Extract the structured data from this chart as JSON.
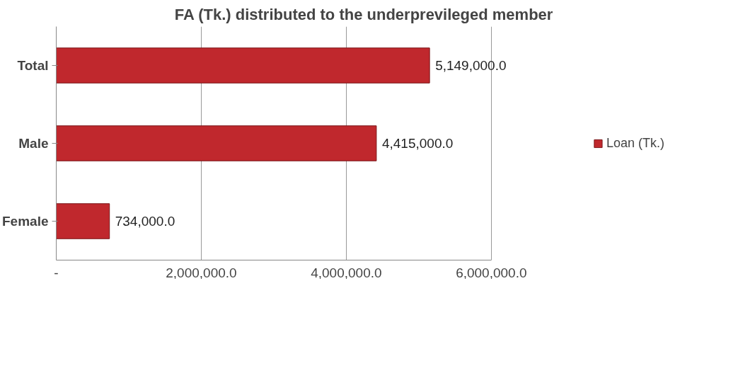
{
  "chart_data": {
    "type": "bar",
    "orientation": "horizontal",
    "title": "FA (Tk.) distributed to the underprevileged member",
    "categories": [
      "Total",
      "Male",
      "Female"
    ],
    "series": [
      {
        "name": "Loan (Tk.)",
        "color": "#c0282d",
        "values": [
          5149000,
          4415000,
          734000
        ],
        "value_labels": [
          "5,149,000.0",
          "4,415,000.0",
          "734,000.0"
        ]
      }
    ],
    "xlim": [
      0,
      6000000
    ],
    "xticks": [
      {
        "value": 0,
        "label": "-"
      },
      {
        "value": 2000000,
        "label": "2,000,000.0"
      },
      {
        "value": 4000000,
        "label": "4,000,000.0"
      },
      {
        "value": 6000000,
        "label": "6,000,000.0"
      }
    ],
    "grid": "x",
    "legend": "right"
  }
}
